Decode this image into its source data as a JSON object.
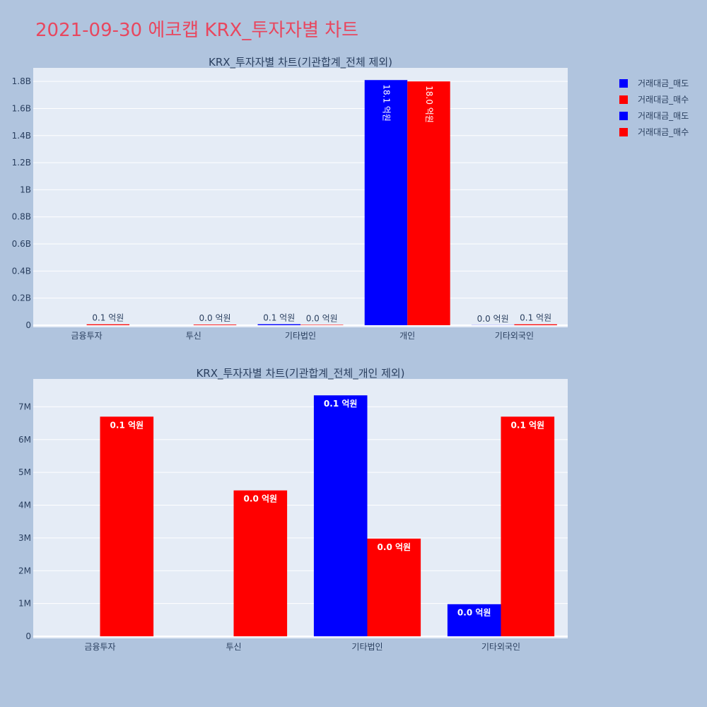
{
  "page_title": "2021-09-30 에코캡 KRX_투자자별 차트",
  "colors": {
    "background": "#b0c4de",
    "plot_bg": "#e5ecf6",
    "title": "#e8475f",
    "sell": "#0000ff",
    "buy": "#ff0000",
    "text": "#2a3f5f"
  },
  "legend": [
    {
      "label": "거래대금_매도",
      "color": "#0000ff"
    },
    {
      "label": "거래대금_매수",
      "color": "#ff0000"
    },
    {
      "label": "거래대금_매도",
      "color": "#0000ff"
    },
    {
      "label": "거래대금_매수",
      "color": "#ff0000"
    }
  ],
  "chart_data": [
    {
      "type": "bar",
      "title": "KRX_투자자별 차트(기관합계_전체 제외)",
      "categories": [
        "금융투자",
        "투신",
        "기타법인",
        "개인",
        "기타외국인"
      ],
      "series": [
        {
          "name": "거래대금_매도",
          "color": "#0000ff",
          "values": [
            0,
            0,
            7350000,
            1810000000,
            980000
          ],
          "labels": [
            "",
            "",
            "0.1 억원",
            "18.1 억원",
            "0.0 억원"
          ]
        },
        {
          "name": "거래대금_매수",
          "color": "#ff0000",
          "values": [
            6700000,
            4450000,
            2980000,
            1800000000,
            6700000
          ],
          "labels": [
            "0.1 억원",
            "0.0 억원",
            "0.0 억원",
            "18.0 억원",
            "0.1 억원"
          ]
        }
      ],
      "ylim": [
        0,
        1900000000
      ],
      "yticks": [
        {
          "v": 0,
          "t": "0"
        },
        {
          "v": 200000000,
          "t": "0.2B"
        },
        {
          "v": 400000000,
          "t": "0.4B"
        },
        {
          "v": 600000000,
          "t": "0.6B"
        },
        {
          "v": 800000000,
          "t": "0.8B"
        },
        {
          "v": 1000000000,
          "t": "1B"
        },
        {
          "v": 1200000000,
          "t": "1.2B"
        },
        {
          "v": 1400000000,
          "t": "1.4B"
        },
        {
          "v": 1600000000,
          "t": "1.6B"
        },
        {
          "v": 1800000000,
          "t": "1.8B"
        }
      ],
      "grid": true
    },
    {
      "type": "bar",
      "title": "KRX_투자자별 차트(기관합계_전체_개인 제외)",
      "categories": [
        "금융투자",
        "투신",
        "기타법인",
        "기타외국인"
      ],
      "series": [
        {
          "name": "거래대금_매도",
          "color": "#0000ff",
          "values": [
            0,
            0,
            7350000,
            980000
          ],
          "labels": [
            "",
            "",
            "0.1 억원",
            "0.0 억원"
          ]
        },
        {
          "name": "거래대금_매수",
          "color": "#ff0000",
          "values": [
            6700000,
            4450000,
            2980000,
            6700000
          ],
          "labels": [
            "0.1 억원",
            "0.0 억원",
            "0.0 억원",
            "0.1 억원"
          ]
        }
      ],
      "ylim": [
        0,
        7850000
      ],
      "yticks": [
        {
          "v": 0,
          "t": "0"
        },
        {
          "v": 1000000,
          "t": "1M"
        },
        {
          "v": 2000000,
          "t": "2M"
        },
        {
          "v": 3000000,
          "t": "3M"
        },
        {
          "v": 4000000,
          "t": "4M"
        },
        {
          "v": 5000000,
          "t": "5M"
        },
        {
          "v": 6000000,
          "t": "6M"
        },
        {
          "v": 7000000,
          "t": "7M"
        }
      ],
      "grid": true
    }
  ]
}
